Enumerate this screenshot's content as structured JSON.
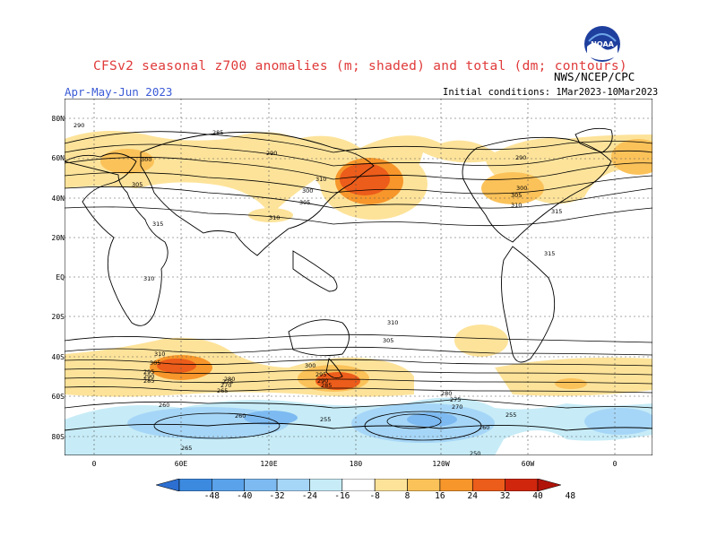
{
  "header": {
    "title": "CFSv2 seasonal z700 anomalies (m; shaded) and total (dm; contours)",
    "period": "Apr-May-Jun 2023",
    "initial_conditions": "Initial conditions: 1Mar2023-10Mar2023",
    "agency": "NWS/NCEP/CPC",
    "logo_text": "NOAA"
  },
  "axes": {
    "lat_labels": [
      "80N",
      "60N",
      "40N",
      "20N",
      "EQ",
      "20S",
      "40S",
      "60S",
      "80S"
    ],
    "lon_labels": [
      "0",
      "60E",
      "120E",
      "180",
      "120W",
      "60W",
      "0"
    ]
  },
  "colorbar": {
    "labels": [
      "-48",
      "-40",
      "-32",
      "-24",
      "-16",
      "-8",
      "8",
      "16",
      "24",
      "32",
      "40",
      "48"
    ],
    "colors": [
      "#2c6fd1",
      "#3c8ae0",
      "#5aa2ea",
      "#7dbaf1",
      "#a6d6f7",
      "#c7ecf7",
      "#ffffff",
      "#fde39a",
      "#fbc25a",
      "#f7962b",
      "#ec5c1a",
      "#d0260e",
      "#b01409"
    ]
  },
  "contours": {
    "labels_nh": [
      "290",
      "285",
      "290",
      "300",
      "305",
      "315",
      "310",
      "300",
      "305",
      "310",
      "295",
      "290",
      "300",
      "305",
      "310",
      "315",
      "315",
      "310"
    ],
    "labels_sh": [
      "310",
      "305",
      "295",
      "290",
      "285",
      "280",
      "260",
      "265",
      "270",
      "275",
      "260",
      "255",
      "300",
      "295",
      "290",
      "285",
      "280",
      "275",
      "270",
      "260",
      "255",
      "265",
      "250",
      "245",
      "305",
      "310"
    ]
  },
  "colors": {
    "map_line": "#000000",
    "grid": "#555555",
    "contour": "#000000"
  }
}
